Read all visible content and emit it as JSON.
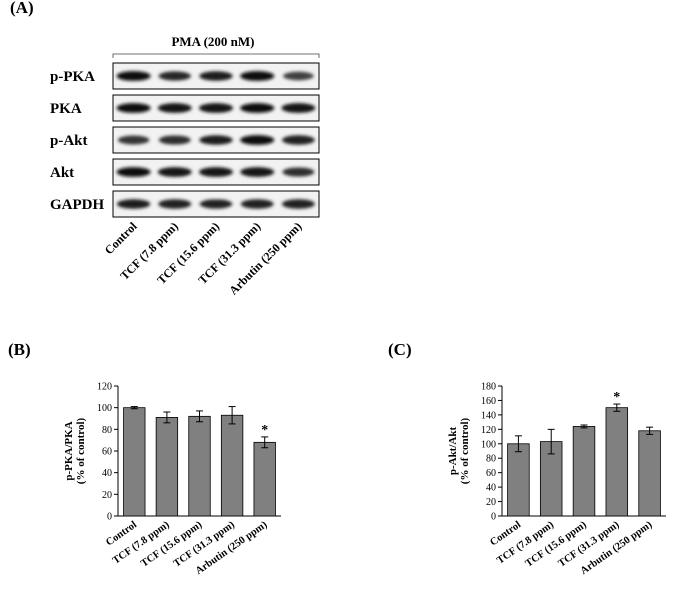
{
  "panels": {
    "a_label": "(A)",
    "b_label": "(B)",
    "c_label": "(C)"
  },
  "blot": {
    "treatment_label": "PMA (200 nM)",
    "rows": [
      "p-PKA",
      "PKA",
      "p-Akt",
      "Akt",
      "GAPDH"
    ],
    "lanes": [
      "Control",
      "TCF (7.8 ppm)",
      "TCF (15.6 ppm)",
      "TCF (31.3 ppm)",
      "Arbutin (250 ppm)"
    ],
    "band_intensity": [
      [
        0.95,
        0.75,
        0.85,
        0.95,
        0.55
      ],
      [
        0.95,
        0.92,
        0.93,
        0.95,
        0.92
      ],
      [
        0.65,
        0.7,
        0.85,
        0.95,
        0.8
      ],
      [
        0.95,
        0.92,
        0.92,
        0.92,
        0.7
      ],
      [
        0.85,
        0.82,
        0.78,
        0.8,
        0.82
      ]
    ]
  },
  "chart_data": [
    {
      "type": "bar",
      "ylabel": "p-PKA/PKA\n(% of control)",
      "categories": [
        "Control",
        "TCF (7.8 ppm)",
        "TCF (15.6 ppm)",
        "TCF (31.3 ppm)",
        "Arbutin (250 ppm)"
      ],
      "values": [
        100,
        91,
        92,
        93,
        68
      ],
      "errors": [
        1,
        5,
        5,
        8,
        5
      ],
      "significance": [
        "",
        "",
        "",
        "",
        "*"
      ],
      "ylim": [
        0,
        120
      ],
      "yticks": [
        0,
        20,
        40,
        60,
        80,
        100,
        120
      ],
      "bar_color": "#808080"
    },
    {
      "type": "bar",
      "ylabel": "p-Akt/Akt\n(% of control)",
      "categories": [
        "Control",
        "TCF (7.8 ppm)",
        "TCF (15.6 ppm)",
        "TCF (31.3 ppm)",
        "Arbutin (250 ppm)"
      ],
      "values": [
        100,
        103,
        124,
        150,
        118
      ],
      "errors": [
        11,
        17,
        2,
        5,
        5
      ],
      "significance": [
        "",
        "",
        "",
        "*",
        ""
      ],
      "ylim": [
        0,
        180
      ],
      "yticks": [
        0,
        20,
        40,
        60,
        80,
        100,
        120,
        140,
        160,
        180
      ],
      "bar_color": "#808080"
    }
  ]
}
